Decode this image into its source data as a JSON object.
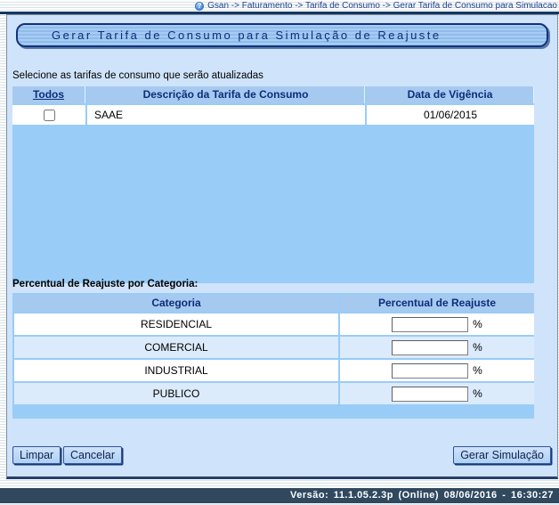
{
  "breadcrumb": {
    "text": "Gsan -> Faturamento -> Tarifa de Consumo -> Gerar Tarifa de Consumo para Simulacao",
    "help_glyph": "?"
  },
  "page": {
    "title": "Gerar Tarifa de Consumo para Simulação de Reajuste"
  },
  "tariff_section": {
    "label": "Selecione as tarifas de consumo que serão atualizadas",
    "table": {
      "headers": [
        "Todos",
        "Descrição da Tarifa de Consumo",
        "Data de Vigência"
      ],
      "rows": [
        {
          "descricao": "SAAE",
          "vigencia": "01/06/2015",
          "checked": false
        }
      ]
    }
  },
  "reajuste_section": {
    "label": "Percentual de Reajuste por Categoria:",
    "table": {
      "headers": [
        "Categoria",
        "Percentual de Reajuste"
      ],
      "rows": [
        {
          "categoria": "RESIDENCIAL",
          "value": "",
          "suffix": "%"
        },
        {
          "categoria": "COMERCIAL",
          "value": "",
          "suffix": "%"
        },
        {
          "categoria": "INDUSTRIAL",
          "value": "",
          "suffix": "%"
        },
        {
          "categoria": "PUBLICO",
          "value": "",
          "suffix": "%"
        }
      ]
    }
  },
  "buttons": {
    "limpar": "Limpar",
    "cancelar": "Cancelar",
    "gerar": "Gerar Simulação"
  },
  "footer": {
    "text": "Versão: 11.1.05.2.3p (Online) 08/06/2016 - 16:30:27"
  },
  "colors": {
    "page_bg": "#cfe3fa",
    "table_bg": "#99ccf7",
    "header_bg": "#a6c9f0",
    "title_text": "#0d2d7a",
    "footer_bg": "#30495f",
    "row_alt": "#dcebfc"
  }
}
